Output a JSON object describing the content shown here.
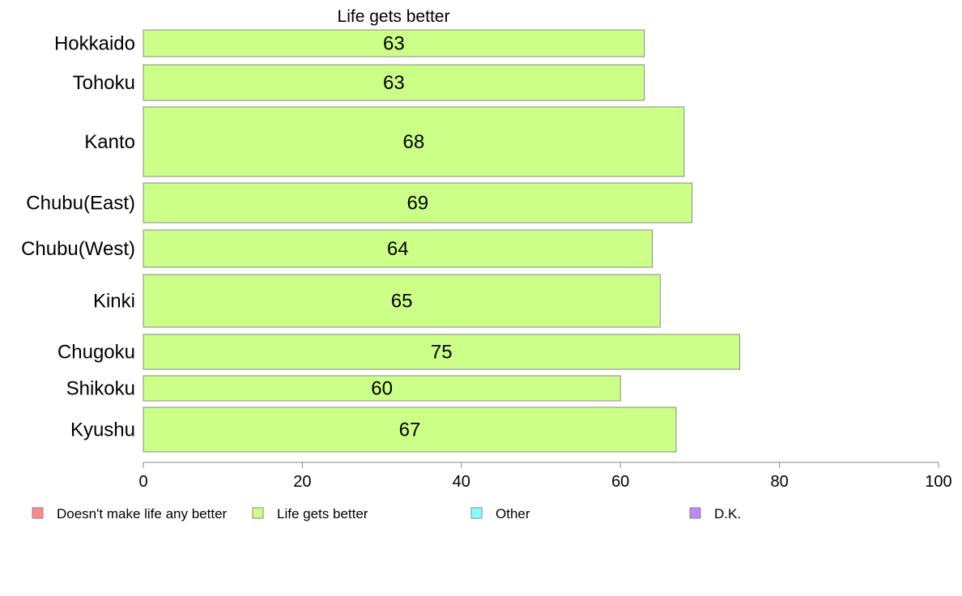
{
  "chart_data": {
    "type": "bar",
    "orientation": "horizontal",
    "title": "Life gets better",
    "categories": [
      "Hokkaido",
      "Tohoku",
      "Kanto",
      "Chubu(East)",
      "Chubu(West)",
      "Kinki",
      "Chugoku",
      "Shikoku",
      "Kyushu"
    ],
    "series": [
      {
        "name": "Life gets better",
        "values": [
          63,
          63,
          68,
          69,
          64,
          65,
          75,
          60,
          67
        ],
        "color": "#ccff88"
      }
    ],
    "data_labels": [
      "63",
      "63",
      "68",
      "69",
      "64",
      "65",
      "75",
      "60",
      "67"
    ],
    "legend": [
      {
        "label": "Doesn't make life any better",
        "color": "#ff8888"
      },
      {
        "label": "Life gets better",
        "color": "#ccff88"
      },
      {
        "label": "Other",
        "color": "#88ffff"
      },
      {
        "label": "D.K.",
        "color": "#bb88ff"
      }
    ],
    "legend_position": "bottom",
    "xlim": [
      0,
      100
    ],
    "xticks": [
      0,
      20,
      40,
      60,
      80,
      100
    ],
    "grid": false,
    "xlabel": "",
    "ylabel": ""
  }
}
